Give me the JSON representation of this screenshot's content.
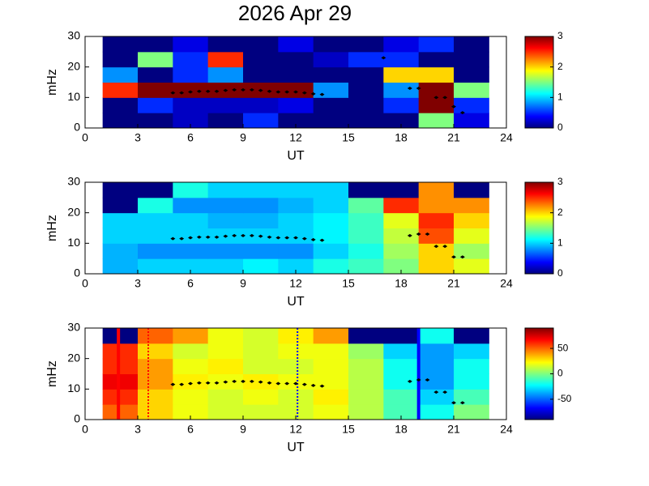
{
  "chart_data": [
    {
      "type": "heatmap",
      "title": "2026 Apr 29",
      "xlabel": "UT",
      "ylabel": "mHz",
      "colormap": "jet",
      "xlim": [
        0,
        24
      ],
      "xticks": [
        0,
        3,
        6,
        9,
        12,
        15,
        18,
        21,
        24
      ],
      "ylim": [
        0,
        30
      ],
      "yticks": [
        0,
        10,
        20,
        30
      ],
      "clim": [
        0,
        3
      ],
      "cticks": [
        0,
        1,
        2,
        3
      ],
      "x": [
        2,
        4,
        6,
        8,
        10,
        12,
        14,
        16,
        18,
        20,
        22
      ],
      "y": [
        2.5,
        7.5,
        12.5,
        17.5,
        22.5,
        27.5
      ],
      "z": [
        [
          0,
          0,
          0.2,
          0,
          0.5,
          0,
          0,
          0,
          0,
          1.5,
          0.3
        ],
        [
          0,
          0.5,
          0.2,
          0.2,
          0.2,
          0.3,
          0,
          0,
          0.5,
          3,
          0.5
        ],
        [
          2.5,
          3,
          3,
          3,
          3,
          3,
          0.8,
          0,
          0.8,
          3,
          1.5
        ],
        [
          0.8,
          0,
          0.5,
          0.8,
          0,
          0,
          0,
          0,
          2,
          2,
          0
        ],
        [
          0,
          1.5,
          0.5,
          2.5,
          0,
          0,
          0.2,
          0.5,
          0.5,
          0,
          0
        ],
        [
          0,
          0,
          0.3,
          0,
          0,
          0.3,
          0,
          0,
          0.3,
          0.5,
          0
        ]
      ],
      "series": [
        {
          "color": "#000000",
          "x": [
            5,
            5.5,
            6,
            6.5,
            7,
            7.5,
            8,
            8.5,
            9,
            9.5,
            10,
            10.5,
            11,
            11.5,
            12,
            12.5,
            13,
            13.5,
            17,
            18.5,
            19,
            20,
            20.5,
            21,
            21.5
          ],
          "y": [
            11.5,
            11.5,
            11.8,
            12,
            12,
            12,
            12.3,
            12.5,
            12.5,
            12.5,
            12.3,
            12,
            11.8,
            11.8,
            11.8,
            11.5,
            11.2,
            11,
            23,
            13,
            13,
            10,
            10,
            7,
            5
          ]
        }
      ]
    },
    {
      "type": "heatmap",
      "xlabel": "UT",
      "ylabel": "mHz",
      "colormap": "jet",
      "xlim": [
        0,
        24
      ],
      "xticks": [
        0,
        3,
        6,
        9,
        12,
        15,
        18,
        21,
        24
      ],
      "ylim": [
        0,
        30
      ],
      "yticks": [
        0,
        10,
        20,
        30
      ],
      "clim": [
        0,
        3
      ],
      "cticks": [
        0,
        1,
        2,
        3
      ],
      "x": [
        2,
        4,
        6,
        8,
        10,
        12,
        14,
        16,
        18,
        20,
        22
      ],
      "y": [
        2.5,
        7.5,
        12.5,
        17.5,
        22.5,
        27.5
      ],
      "z": [
        [
          0.9,
          1,
          1,
          1,
          1.1,
          1,
          1.2,
          1.3,
          1.5,
          2,
          1.8
        ],
        [
          0.9,
          0.8,
          0.8,
          0.8,
          0.8,
          0.8,
          1,
          1.2,
          1.6,
          2,
          1.6
        ],
        [
          1,
          1,
          1,
          1,
          1,
          1,
          1.1,
          1.3,
          1.7,
          2.4,
          1.8
        ],
        [
          1,
          1,
          1,
          0.9,
          0.9,
          1,
          1.1,
          1.3,
          1.8,
          2.5,
          2
        ],
        [
          0,
          1.2,
          0.8,
          0.8,
          0.8,
          0.9,
          1,
          1.4,
          2.5,
          2.2,
          2.2
        ],
        [
          0,
          0,
          1.2,
          1,
          1,
          1,
          1,
          0,
          0,
          2.2,
          0
        ]
      ],
      "series": [
        {
          "color": "#000000",
          "x": [
            5,
            5.5,
            6,
            6.5,
            7,
            7.5,
            8,
            8.5,
            9,
            9.5,
            10,
            10.5,
            11,
            11.5,
            12,
            12.5,
            13,
            13.5,
            18.5,
            19,
            19.5,
            20,
            20.5,
            21,
            21.5
          ],
          "y": [
            11.5,
            11.5,
            11.8,
            12,
            12,
            12,
            12.3,
            12.5,
            12.5,
            12.5,
            12.3,
            12,
            11.8,
            11.8,
            11.8,
            11.5,
            11.2,
            11,
            12.5,
            13,
            13,
            9,
            9,
            5.5,
            5.5
          ]
        }
      ]
    },
    {
      "type": "heatmap",
      "xlabel": "UT",
      "ylabel": "mHz",
      "colormap": "jet",
      "xlim": [
        0,
        24
      ],
      "xticks": [
        0,
        3,
        6,
        9,
        12,
        15,
        18,
        21,
        24
      ],
      "ylim": [
        0,
        30
      ],
      "yticks": [
        0,
        10,
        20,
        30
      ],
      "clim": [
        -90,
        90
      ],
      "cticks": [
        -50,
        0,
        50
      ],
      "x": [
        2,
        4,
        6,
        8,
        10,
        12,
        14,
        16,
        18,
        20,
        22
      ],
      "y": [
        2.5,
        7.5,
        12.5,
        17.5,
        22.5,
        27.5
      ],
      "z": [
        [
          50,
          30,
          20,
          15,
          15,
          15,
          20,
          10,
          -10,
          -20,
          0
        ],
        [
          60,
          30,
          20,
          15,
          20,
          15,
          25,
          10,
          -10,
          -30,
          -10
        ],
        [
          70,
          40,
          25,
          20,
          25,
          20,
          20,
          10,
          -20,
          -40,
          -20
        ],
        [
          60,
          40,
          20,
          25,
          15,
          15,
          20,
          10,
          -20,
          -40,
          -20
        ],
        [
          60,
          30,
          15,
          20,
          15,
          20,
          20,
          5,
          -30,
          -40,
          -30
        ],
        [
          -90,
          50,
          40,
          20,
          15,
          25,
          40,
          -90,
          -90,
          -20,
          -90
        ]
      ],
      "series": [
        {
          "color": "#000000",
          "x": [
            5,
            5.5,
            6,
            6.5,
            7,
            7.5,
            8,
            8.5,
            9,
            9.5,
            10,
            10.5,
            11,
            11.5,
            12,
            12.5,
            13,
            13.5,
            18.5,
            19,
            19.5,
            20,
            20.5,
            21,
            21.5
          ],
          "y": [
            11.5,
            11.5,
            11.8,
            12,
            12,
            12,
            12.3,
            12.5,
            12.5,
            12.5,
            12.3,
            12,
            11.8,
            11.8,
            11.8,
            11.5,
            11.2,
            11,
            12.5,
            13,
            13,
            9,
            9,
            5.5,
            5.5
          ]
        }
      ],
      "vlines": [
        {
          "x": 1.9,
          "color": "#ff0000",
          "style": "solid"
        },
        {
          "x": 3.6,
          "color": "#ff0000",
          "style": "dotted"
        },
        {
          "x": 12.1,
          "color": "#0000ff",
          "style": "dotted"
        },
        {
          "x": 19.0,
          "color": "#0000ff",
          "style": "solid"
        }
      ]
    }
  ]
}
